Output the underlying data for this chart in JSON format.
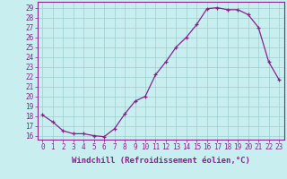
{
  "x": [
    0,
    1,
    2,
    3,
    4,
    5,
    6,
    7,
    8,
    9,
    10,
    11,
    12,
    13,
    14,
    15,
    16,
    17,
    18,
    19,
    20,
    21,
    22,
    23
  ],
  "y": [
    18.1,
    17.4,
    16.5,
    16.2,
    16.2,
    16.0,
    15.9,
    16.7,
    18.2,
    19.5,
    20.0,
    22.2,
    23.5,
    25.0,
    26.0,
    27.3,
    28.9,
    29.0,
    28.8,
    28.8,
    28.3,
    27.0,
    23.5,
    21.7
  ],
  "line_color": "#882288",
  "marker": "+",
  "bg_color": "#c8eef0",
  "grid_color": "#9ecece",
  "xlabel": "Windchill (Refroidissement éolien,°C)",
  "ylabel_ticks": [
    16,
    17,
    18,
    19,
    20,
    21,
    22,
    23,
    24,
    25,
    26,
    27,
    28,
    29
  ],
  "ylim": [
    15.6,
    29.6
  ],
  "xlim": [
    -0.5,
    23.5
  ],
  "xticks": [
    0,
    1,
    2,
    3,
    4,
    5,
    6,
    7,
    8,
    9,
    10,
    11,
    12,
    13,
    14,
    15,
    16,
    17,
    18,
    19,
    20,
    21,
    22,
    23
  ],
  "tick_fontsize": 5.5,
  "label_fontsize": 6.5
}
